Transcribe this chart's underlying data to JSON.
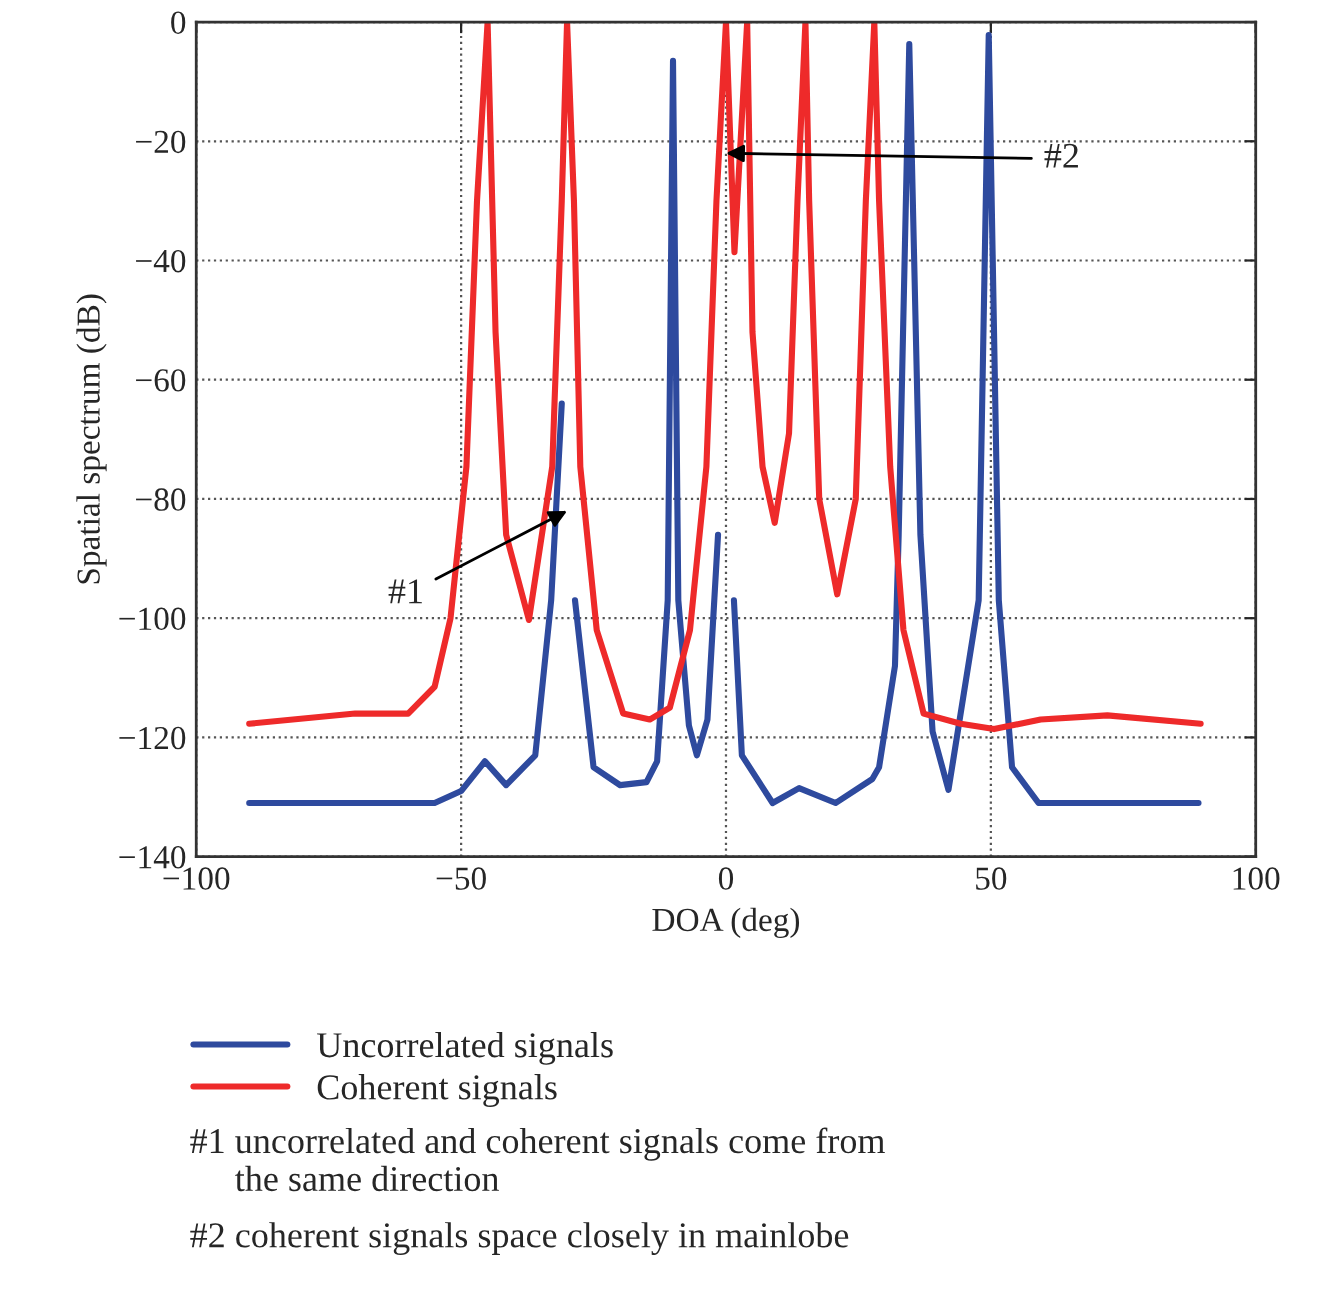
{
  "chart_data": {
    "type": "line",
    "xlabel": "DOA (deg)",
    "ylabel": "Spatial spectrum (dB)",
    "xlim": [
      -100,
      100
    ],
    "xticks": [
      {
        "value": -100,
        "label": "−100"
      },
      {
        "value": -50,
        "label": "−50"
      },
      0,
      50,
      100
    ],
    "ylim": [
      -140,
      0
    ],
    "yticks": [
      {
        "value": -140,
        "label": "−140"
      },
      {
        "value": -120,
        "label": "−120"
      },
      {
        "value": -100,
        "label": "−100"
      },
      {
        "value": -80,
        "label": "−80"
      },
      {
        "value": -60,
        "label": "−60"
      },
      {
        "value": -40,
        "label": "−40"
      },
      {
        "value": -20,
        "label": "−20"
      },
      0
    ],
    "grid": true,
    "legend": "bottom",
    "line_style": "solid",
    "marker": "none",
    "series": [
      {
        "name": "Uncorrelated signals",
        "color": "#2e4a9e",
        "x": [
          -90,
          -55,
          -50,
          -45.5,
          -41.5,
          -36,
          -33,
          -31,
          -30,
          -28.5,
          -25,
          -20,
          -15,
          -13,
          -11,
          -10,
          -9,
          -7,
          -5.5,
          -3.5,
          -1.5,
          0,
          1.5,
          3,
          8.8,
          13.8,
          20.7,
          27.6,
          28.9,
          31.9,
          32.6,
          34.6,
          36.7,
          39,
          42,
          47.7,
          49.6,
          51.5,
          54,
          59,
          89.2
        ],
        "values": [
          -131,
          -131,
          -129,
          -124,
          -128,
          -123,
          -97,
          -64,
          null,
          -97,
          -125,
          -128,
          -127.5,
          -124,
          -97,
          -6.5,
          -97,
          -118,
          -123,
          -117,
          -86,
          null,
          -97,
          -123,
          -131,
          -128.5,
          -131,
          -127,
          -125,
          -108,
          -86,
          -3.7,
          -86,
          -119,
          -128.8,
          -97,
          -2.2,
          -97,
          -125,
          -131,
          -131
        ]
      },
      {
        "name": "Coherent signals",
        "color": "#ee2a2a",
        "x": [
          -90,
          -70,
          -60,
          -55,
          -52,
          -49,
          -47,
          -45,
          -43.5,
          -41.5,
          -37.2,
          -32.8,
          -31,
          -30,
          -28.7,
          -27.5,
          -24.4,
          -19.4,
          -14.4,
          -10.6,
          -6.8,
          -3.7,
          -1.8,
          0,
          1.6,
          4,
          5,
          6.9,
          9.2,
          11.9,
          13.5,
          15,
          15.7,
          17.6,
          21,
          24.5,
          26.4,
          28,
          28.9,
          31,
          33.5,
          37.3,
          44.3,
          50.6,
          59.4,
          72,
          89.6
        ],
        "values": [
          -117.7,
          -116,
          -116,
          -111.5,
          -100,
          -74.6,
          -30,
          0,
          -52,
          -86,
          -100.3,
          -74.6,
          -30,
          0,
          -30,
          -74.6,
          -102,
          -116,
          -117,
          -115,
          -102,
          -74.6,
          -30,
          0,
          -38.6,
          0,
          -52,
          -74.6,
          -84,
          -69,
          -30,
          0,
          -30,
          -80,
          -96,
          -80,
          -30,
          0,
          -30,
          -74.6,
          -102,
          -116,
          -117.7,
          -118.6,
          -117,
          -116.3,
          -117.7
        ]
      }
    ],
    "annotations": [
      {
        "text": "#1",
        "x": -30,
        "y": -82
      },
      {
        "text": "#2",
        "x": 0,
        "y": -22
      },
      "#1 uncorrelated and coherent signals come from\n     the same direction",
      "#2 coherent signals space closely in mainlobe"
    ]
  }
}
